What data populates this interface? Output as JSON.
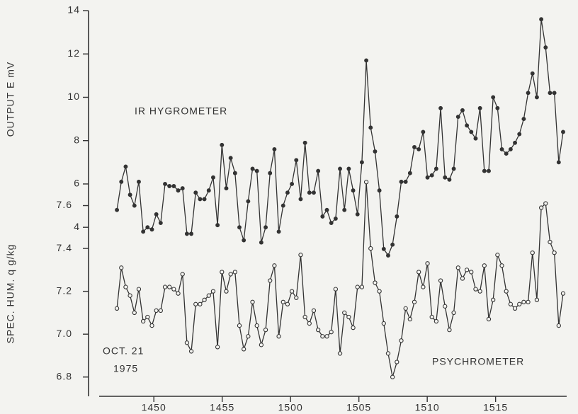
{
  "chart_data": {
    "type": "line",
    "y_label": "OUTPUT E mV",
    "y2_label": "SPEC. HUM. q g/kg",
    "annotations": [
      "IR HYGROMETER",
      "PSYCHROMETER",
      "OCT. 21",
      "1975"
    ],
    "x": [
      47.3,
      47.62,
      47.94,
      48.26,
      48.58,
      48.9,
      49.22,
      49.54,
      49.86,
      50.18,
      50.5,
      50.82,
      51.14,
      51.46,
      51.78,
      52.1,
      52.42,
      52.74,
      53.06,
      53.38,
      53.7,
      54.02,
      54.34,
      54.66,
      54.98,
      55.3,
      55.62,
      55.94,
      56.26,
      56.58,
      56.9,
      57.22,
      57.54,
      57.86,
      58.18,
      58.5,
      58.82,
      59.14,
      59.46,
      59.78,
      60.1,
      60.42,
      60.74,
      61.06,
      61.38,
      61.7,
      62.02,
      62.34,
      62.66,
      62.98,
      63.3,
      63.62,
      63.94,
      64.26,
      64.58,
      64.9,
      65.22,
      65.54,
      65.86,
      66.18,
      66.5,
      66.82,
      67.14,
      67.46,
      67.78,
      68.1,
      68.42,
      68.74,
      69.06,
      69.38,
      69.7,
      70.02,
      70.34,
      70.66,
      70.98,
      71.3,
      71.62,
      71.94,
      72.26,
      72.58,
      72.9,
      73.22,
      73.54,
      73.86,
      74.18,
      74.5,
      74.82,
      75.14,
      75.46,
      75.78,
      76.1,
      76.42,
      76.74,
      77.06,
      77.38,
      77.7,
      78.02,
      78.34,
      78.66,
      78.98,
      79.3,
      79.62,
      79.94
    ],
    "series": [
      {
        "color": "#333333",
        "marker": "filled",
        "values": [
          4.8,
          6.1,
          6.8,
          5.5,
          5.0,
          6.1,
          3.8,
          4.0,
          3.9,
          4.6,
          4.2,
          6.0,
          5.9,
          5.9,
          5.7,
          5.8,
          3.7,
          3.7,
          5.6,
          5.3,
          5.3,
          5.7,
          6.3,
          4.1,
          7.8,
          5.8,
          7.2,
          6.5,
          4.0,
          3.4,
          5.2,
          6.7,
          6.6,
          3.3,
          4.0,
          6.5,
          7.6,
          3.8,
          5.0,
          5.6,
          6.0,
          7.1,
          5.3,
          7.9,
          5.6,
          5.6,
          6.6,
          4.5,
          4.8,
          4.2,
          4.4,
          6.7,
          4.8,
          6.7,
          5.7,
          4.6,
          7.0,
          11.7,
          8.6,
          7.5,
          5.7,
          3.0,
          2.7,
          3.2,
          4.5,
          6.1,
          6.1,
          6.5,
          7.7,
          7.6,
          8.4,
          6.3,
          6.4,
          6.7,
          9.5,
          6.3,
          6.2,
          6.7,
          9.1,
          9.4,
          8.7,
          8.4,
          8.1,
          9.5,
          6.6,
          6.6,
          10.0,
          9.5,
          7.6,
          7.4,
          7.6,
          7.9,
          8.3,
          9.0,
          10.2,
          11.1,
          10.0,
          13.6,
          12.3,
          10.2,
          10.2,
          7.0,
          8.4
        ]
      },
      {
        "color": "#333333",
        "marker": "open",
        "axis": "y2",
        "values": [
          7.12,
          7.31,
          7.22,
          7.18,
          7.1,
          7.21,
          7.06,
          7.08,
          7.04,
          7.11,
          7.11,
          7.22,
          7.22,
          7.21,
          7.19,
          7.28,
          6.96,
          6.92,
          7.14,
          7.14,
          7.16,
          7.18,
          7.2,
          6.94,
          7.29,
          7.2,
          7.28,
          7.29,
          7.04,
          6.93,
          6.99,
          7.15,
          7.04,
          6.95,
          7.02,
          7.25,
          7.32,
          6.99,
          7.15,
          7.14,
          7.2,
          7.17,
          7.37,
          7.08,
          7.05,
          7.11,
          7.02,
          6.99,
          6.99,
          7.01,
          7.21,
          6.91,
          7.1,
          7.08,
          7.03,
          7.22,
          7.22,
          7.71,
          7.4,
          7.24,
          7.2,
          7.05,
          6.91,
          6.8,
          6.87,
          6.97,
          7.12,
          7.07,
          7.15,
          7.29,
          7.22,
          7.33,
          7.08,
          7.06,
          7.25,
          7.13,
          7.02,
          7.1,
          7.31,
          7.26,
          7.3,
          7.29,
          7.21,
          7.2,
          7.32,
          7.07,
          7.16,
          7.37,
          7.32,
          7.2,
          7.14,
          7.12,
          7.14,
          7.15,
          7.15,
          7.38,
          7.16,
          7.59,
          7.61,
          7.43,
          7.38,
          7.04,
          7.19
        ]
      }
    ],
    "xlim": [
      46,
      80.2
    ],
    "xticks": [
      {
        "value": 50,
        "label": "1450"
      },
      {
        "value": 55,
        "label": "1455"
      },
      {
        "value": 60,
        "label": "1500"
      },
      {
        "value": 65,
        "label": "1505"
      },
      {
        "value": 70,
        "label": "1510"
      },
      {
        "value": 75,
        "label": "1515"
      }
    ],
    "ylim": [
      -3.8,
      14
    ],
    "yticks": [
      4,
      6,
      8,
      10,
      12,
      14
    ],
    "y2lim": [
      6.71,
      8.51
    ],
    "y2ticks": [
      6.8,
      {
        "value": 7,
        "label": "7.0"
      },
      7.2,
      7.4,
      7.6
    ],
    "grid": false
  }
}
